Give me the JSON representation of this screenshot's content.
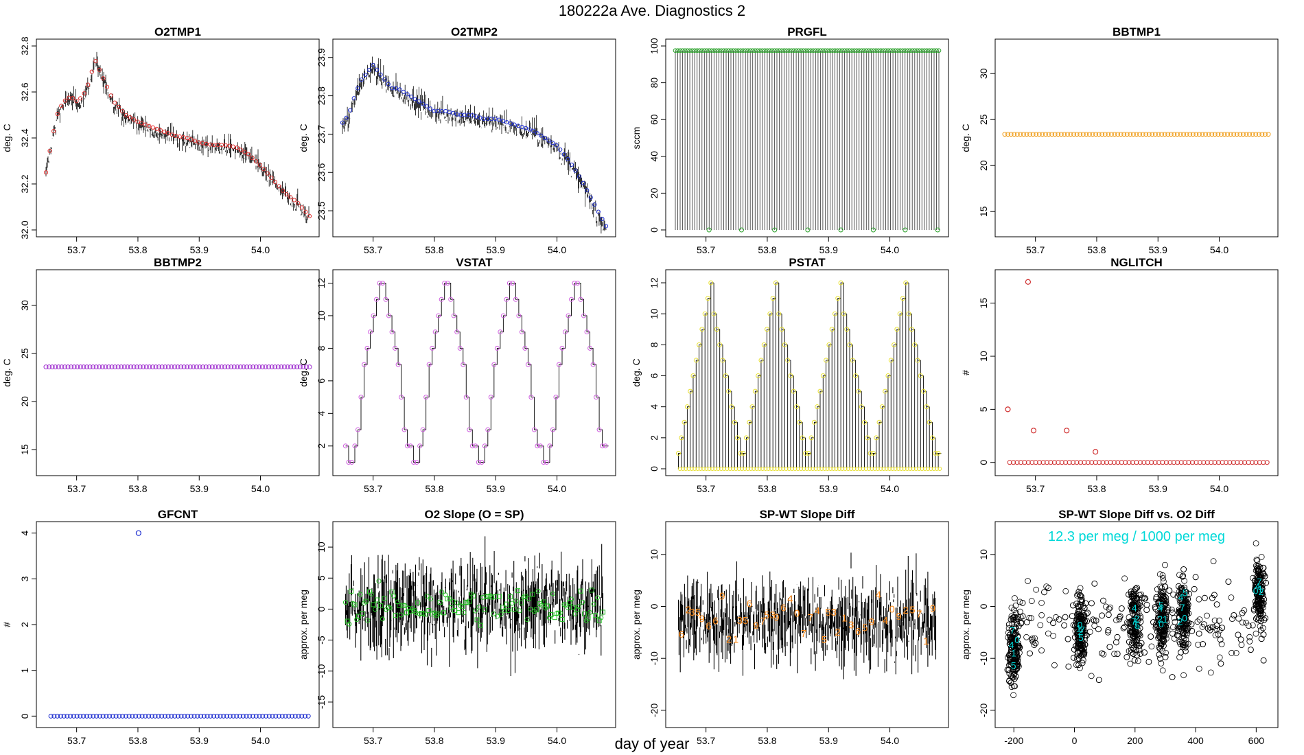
{
  "figure": {
    "title": "180222a   Ave. Diagnostics 2",
    "xlabel": "day of year"
  },
  "chart_data": [
    {
      "id": "o2tmp1",
      "type": "line",
      "title": "O2TMP1",
      "ylabel": "deg. C",
      "xlim": [
        53.65,
        54.08
      ],
      "ylim": [
        32.0,
        32.8
      ],
      "xticks": [
        53.7,
        53.8,
        53.9,
        54.0
      ],
      "xtick_labels": [
        "53.7",
        "53.8",
        "53.9",
        "54.0"
      ],
      "yticks": [
        32.0,
        32.2,
        32.4,
        32.6,
        32.8
      ],
      "ytick_labels": [
        "32.0",
        "32.2",
        "32.4",
        "32.6",
        "32.8"
      ],
      "marker_color": "#e03030",
      "marker": "circle",
      "x": [
        53.65,
        53.66,
        53.67,
        53.68,
        53.69,
        53.7,
        53.71,
        53.72,
        53.73,
        53.74,
        53.75,
        53.76,
        53.78,
        53.8,
        53.82,
        53.84,
        53.86,
        53.88,
        53.9,
        53.92,
        53.94,
        53.96,
        53.98,
        54.0,
        54.02,
        54.04,
        54.06,
        54.08
      ],
      "y": [
        32.25,
        32.4,
        32.52,
        32.56,
        32.58,
        32.56,
        32.58,
        32.64,
        32.74,
        32.68,
        32.62,
        32.56,
        32.5,
        32.47,
        32.45,
        32.43,
        32.41,
        32.4,
        32.38,
        32.37,
        32.37,
        32.36,
        32.33,
        32.28,
        32.22,
        32.16,
        32.12,
        32.06
      ]
    },
    {
      "id": "o2tmp2",
      "type": "line",
      "title": "O2TMP2",
      "ylabel": "deg. C",
      "xlim": [
        53.65,
        54.08
      ],
      "ylim": [
        23.45,
        23.93
      ],
      "xticks": [
        53.7,
        53.8,
        53.9,
        54.0
      ],
      "xtick_labels": [
        "53.7",
        "53.8",
        "53.9",
        "54.0"
      ],
      "yticks": [
        23.5,
        23.6,
        23.7,
        23.8,
        23.9
      ],
      "ytick_labels": [
        "23.5",
        "23.6",
        "23.7",
        "23.8",
        "23.9"
      ],
      "marker_color": "#1f2fd0",
      "marker": "circle",
      "x": [
        53.65,
        53.66,
        53.67,
        53.68,
        53.69,
        53.7,
        53.71,
        53.72,
        53.73,
        53.74,
        53.76,
        53.78,
        53.8,
        53.82,
        53.84,
        53.86,
        53.88,
        53.9,
        53.92,
        53.94,
        53.96,
        53.98,
        54.0,
        54.02,
        54.04,
        54.06,
        54.08
      ],
      "y": [
        23.73,
        23.75,
        23.8,
        23.84,
        23.86,
        23.88,
        23.86,
        23.84,
        23.82,
        23.82,
        23.8,
        23.78,
        23.76,
        23.76,
        23.75,
        23.75,
        23.74,
        23.74,
        23.73,
        23.72,
        23.71,
        23.69,
        23.67,
        23.63,
        23.58,
        23.52,
        23.46
      ]
    },
    {
      "id": "prgfl",
      "type": "line",
      "title": "PRGFL",
      "ylabel": "sccm",
      "xlim": [
        53.65,
        54.08
      ],
      "ylim": [
        0,
        100
      ],
      "xticks": [
        53.7,
        53.8,
        53.9,
        54.0
      ],
      "xtick_labels": [
        "53.7",
        "53.8",
        "53.9",
        "54.0"
      ],
      "yticks": [
        0,
        20,
        40,
        60,
        80,
        100
      ],
      "ytick_labels": [
        "0",
        "20",
        "40",
        "60",
        "80",
        "100"
      ],
      "marker_color": "#2aa02a",
      "marker": "circle",
      "high": 97.5,
      "low": 0,
      "low_x": [
        53.705,
        53.758,
        53.812,
        53.866,
        53.92,
        53.973,
        54.025,
        54.078
      ]
    },
    {
      "id": "bbtmp1",
      "type": "scatter",
      "title": "BBTMP1",
      "ylabel": "deg. C",
      "xlim": [
        53.65,
        54.08
      ],
      "ylim": [
        13,
        33
      ],
      "xticks": [
        53.7,
        53.8,
        53.9,
        54.0
      ],
      "xtick_labels": [
        "53.7",
        "53.8",
        "53.9",
        "54.0"
      ],
      "yticks": [
        15,
        20,
        25,
        30
      ],
      "ytick_labels": [
        "15",
        "20",
        "25",
        "30"
      ],
      "marker_color": "#f0a020",
      "marker": "circle",
      "constant": 23.4
    },
    {
      "id": "bbtmp2",
      "type": "scatter",
      "title": "BBTMP2",
      "ylabel": "deg. C",
      "xlim": [
        53.65,
        54.08
      ],
      "ylim": [
        13,
        33
      ],
      "xticks": [
        53.7,
        53.8,
        53.9,
        54.0
      ],
      "xtick_labels": [
        "53.7",
        "53.8",
        "53.9",
        "54.0"
      ],
      "yticks": [
        15,
        20,
        25,
        30
      ],
      "ytick_labels": [
        "15",
        "20",
        "25",
        "30"
      ],
      "marker_color": "#a030d0",
      "marker": "circle",
      "constant": 23.6
    },
    {
      "id": "vstat",
      "type": "line",
      "title": "VSTAT",
      "ylabel": "deg. C",
      "xlim": [
        53.65,
        54.08
      ],
      "ylim": [
        0.6,
        12.4
      ],
      "xticks": [
        53.7,
        53.8,
        53.9,
        54.0
      ],
      "xtick_labels": [
        "53.7",
        "53.8",
        "53.9",
        "54.0"
      ],
      "yticks": [
        2,
        4,
        6,
        8,
        10,
        12
      ],
      "ytick_labels": [
        "2",
        "4",
        "6",
        "8",
        "10",
        "12"
      ],
      "marker_color": "#d060e0",
      "marker": "circle",
      "cycle_start": 53.655,
      "cycle_length": 0.106,
      "cycle_values": [
        2,
        1,
        1,
        2,
        3,
        5,
        7,
        8,
        9,
        10,
        11,
        12,
        12,
        11,
        10,
        9,
        8,
        7,
        5,
        3,
        2
      ]
    },
    {
      "id": "pstat",
      "type": "line",
      "title": "PSTAT",
      "ylabel": "deg. C",
      "xlim": [
        53.65,
        54.08
      ],
      "ylim": [
        0,
        12.4
      ],
      "xticks": [
        53.7,
        53.8,
        53.9,
        54.0
      ],
      "xtick_labels": [
        "53.7",
        "53.8",
        "53.9",
        "54.0"
      ],
      "yticks": [
        0,
        2,
        4,
        6,
        8,
        10,
        12
      ],
      "ytick_labels": [
        "0",
        "2",
        "4",
        "6",
        "8",
        "10",
        "12"
      ],
      "marker_color": "#e8e030",
      "marker": "circle",
      "cycle_start": 53.655,
      "cycle_length": 0.106,
      "cycle_values": [
        1,
        2,
        3,
        4,
        5,
        6,
        7,
        8,
        9,
        10,
        11,
        12,
        10,
        9,
        8,
        7,
        6,
        5,
        4,
        3,
        2,
        1
      ]
    },
    {
      "id": "nglitch",
      "type": "scatter",
      "title": "NGLITCH",
      "ylabel": "#",
      "xlim": [
        53.65,
        54.08
      ],
      "ylim": [
        -0.6,
        17.5
      ],
      "xticks": [
        53.7,
        53.8,
        53.9,
        54.0
      ],
      "xtick_labels": [
        "53.7",
        "53.8",
        "53.9",
        "54.0"
      ],
      "yticks": [
        0,
        5,
        10,
        15
      ],
      "ytick_labels": [
        "0",
        "5",
        "10",
        "15"
      ],
      "marker_color": "#d03030",
      "marker": "circle",
      "spikes": [
        {
          "x": 53.655,
          "y": 5
        },
        {
          "x": 53.688,
          "y": 17
        },
        {
          "x": 53.697,
          "y": 3
        },
        {
          "x": 53.751,
          "y": 3
        },
        {
          "x": 53.798,
          "y": 1
        }
      ]
    },
    {
      "id": "gfcnt",
      "type": "scatter",
      "title": "GFCNT",
      "ylabel": "#",
      "xlim": [
        53.65,
        54.08
      ],
      "ylim": [
        -0.1,
        4.1
      ],
      "xticks": [
        53.7,
        53.8,
        53.9,
        54.0
      ],
      "xtick_labels": [
        "53.7",
        "53.8",
        "53.9",
        "54.0"
      ],
      "yticks": [
        0,
        1,
        2,
        3,
        4
      ],
      "ytick_labels": [
        "0",
        "1",
        "2",
        "3",
        "4"
      ],
      "marker_color": "#2030d0",
      "marker": "circle",
      "spikes": [
        {
          "x": 53.801,
          "y": 4
        }
      ]
    },
    {
      "id": "o2slope",
      "type": "line",
      "title": "O2 Slope (O = SP)",
      "ylabel": "approx. per meg",
      "xlim": [
        53.65,
        54.08
      ],
      "ylim": [
        -18,
        13
      ],
      "xticks": [
        53.7,
        53.8,
        53.9,
        54.0
      ],
      "xtick_labels": [
        "53.7",
        "53.8",
        "53.9",
        "54.0"
      ],
      "yticks": [
        -15,
        -10,
        -5,
        0,
        5,
        10
      ],
      "ytick_labels": [
        "-15",
        "-10",
        "-5",
        "0",
        "5",
        "10"
      ],
      "marker_color": "#20c020",
      "marker": "square/circle",
      "center": 0.5,
      "noise": 4.5
    },
    {
      "id": "spwtdiff",
      "type": "line",
      "title": "SP-WT Slope Diff",
      "ylabel": "approx. per meg",
      "xlim": [
        53.65,
        54.08
      ],
      "ylim": [
        -22,
        15
      ],
      "xticks": [
        53.7,
        53.8,
        53.9,
        54.0
      ],
      "xtick_labels": [
        "53.7",
        "53.8",
        "53.9",
        "54.0"
      ],
      "yticks": [
        -20,
        -10,
        0,
        10
      ],
      "ytick_labels": [
        "-20",
        "-10",
        "0",
        "10"
      ],
      "marker_color": "#ff8c1a",
      "marker": "digit",
      "center": -3,
      "noise": 5,
      "digit_labels": [
        "6",
        "2",
        "35",
        "9",
        "6",
        "6",
        "9",
        "2",
        "1",
        "35",
        "6",
        "9",
        "7",
        "53",
        "9",
        "6",
        "4",
        "0",
        "7",
        "7",
        "4",
        "5",
        "53",
        "2",
        "1",
        "3",
        "6",
        "5",
        "9",
        "4",
        "4",
        "0",
        "9",
        "2",
        "5",
        "7",
        "1",
        "9"
      ]
    },
    {
      "id": "scatterdiff",
      "type": "scatter",
      "title": "SP-WT Slope Diff vs. O2 Diff",
      "ylabel": "approx. per meg",
      "xlim": [
        -230,
        640
      ],
      "ylim": [
        -22,
        15
      ],
      "xticks": [
        -200,
        0,
        200,
        400,
        600
      ],
      "xtick_labels": [
        "-200",
        "0",
        "200",
        "400",
        "600"
      ],
      "yticks": [
        -20,
        -10,
        0,
        10
      ],
      "ytick_labels": [
        "-20",
        "-10",
        "0",
        "10"
      ],
      "marker_color": "#000000",
      "highlight_color": "#00d8d8",
      "annotation": "12.3 per meg / 1000 per meg",
      "clusters": [
        {
          "x": -200,
          "y": -8
        },
        {
          "x": 20,
          "y": -4
        },
        {
          "x": 200,
          "y": -3
        },
        {
          "x": 290,
          "y": -2
        },
        {
          "x": 360,
          "y": -1
        },
        {
          "x": 610,
          "y": 3
        }
      ],
      "highlight_digits": [
        "4",
        "0",
        "7",
        "1",
        "5",
        "2"
      ]
    }
  ]
}
